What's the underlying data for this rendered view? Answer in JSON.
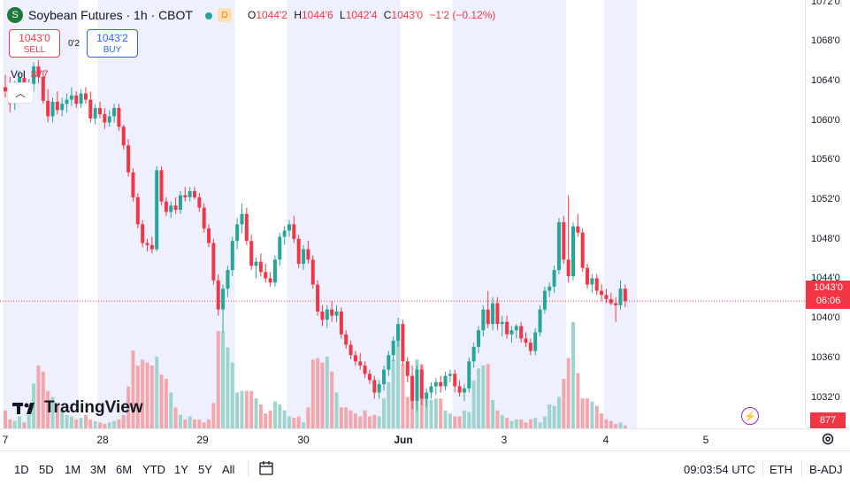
{
  "header": {
    "logo_glyph": "S",
    "symbol": "Soybean Futures · 1h · CBOT",
    "status_badge": "D",
    "ohlc": {
      "o_label": "O",
      "o": "1044'2",
      "h_label": "H",
      "h": "1044'6",
      "l_label": "L",
      "l": "1042'4",
      "c_label": "C",
      "c": "1043'0",
      "change": "−1'2 (−0.12%)"
    }
  },
  "trade": {
    "sell_price": "1043'0",
    "sell_label": "SELL",
    "buy_price": "1043'2",
    "buy_label": "BUY",
    "spread": "0'2"
  },
  "volume": {
    "label": "Vol",
    "value": "877"
  },
  "collapse_glyph": "︿",
  "logo_text": "TradingView",
  "price_axis": {
    "ticks": [
      "1072'0",
      "1068'0",
      "1064'0",
      "1060'0",
      "1056'0",
      "1052'0",
      "1048'0",
      "1044'0",
      "1040'0",
      "1036'0",
      "1032'0"
    ],
    "last_price": "1043'0",
    "countdown": "06:06",
    "volume_tag": "877"
  },
  "time_axis": [
    "7",
    "28",
    "29",
    "30",
    "Jun",
    "3",
    "4",
    "5"
  ],
  "bottom_bar": {
    "timeframes": [
      "1D",
      "5D",
      "1M",
      "3M",
      "6M",
      "YTD",
      "1Y",
      "5Y",
      "All"
    ],
    "clock": "09:03:54 UTC",
    "session": "ETH",
    "adjustment": "B-ADJ"
  },
  "colors": {
    "up": "#26a69a",
    "down": "#f23645",
    "session_bg": "#eef1fd",
    "vol_up": "#9fd4ce",
    "vol_down": "#f4a6ad"
  },
  "chart_data": {
    "type": "candlestick",
    "price_range": [
      1030.75,
      1072
    ],
    "last_price": 1043.0,
    "candles": [
      [
        1063.6,
        1064.8,
        1062.6,
        1063.2
      ],
      [
        1063.2,
        1064.6,
        1061.2,
        1062.0
      ],
      [
        1062.0,
        1064.2,
        1061.4,
        1063.8
      ],
      [
        1063.8,
        1065.2,
        1062.9,
        1064.5
      ],
      [
        1064.5,
        1065.1,
        1063.0,
        1063.4
      ],
      [
        1063.4,
        1064.4,
        1062.4,
        1063.9
      ],
      [
        1063.9,
        1066.0,
        1063.2,
        1065.6
      ],
      [
        1065.6,
        1066.2,
        1064.0,
        1064.6
      ],
      [
        1064.6,
        1065.2,
        1062.0,
        1062.3
      ],
      [
        1062.3,
        1063.4,
        1060.2,
        1060.8
      ],
      [
        1060.8,
        1062.6,
        1060.2,
        1062.2
      ],
      [
        1062.2,
        1063.2,
        1061.0,
        1061.4
      ],
      [
        1061.4,
        1062.6,
        1060.8,
        1062.0
      ],
      [
        1062.0,
        1063.0,
        1061.2,
        1062.4
      ],
      [
        1062.4,
        1063.6,
        1061.8,
        1062.8
      ],
      [
        1062.8,
        1063.2,
        1061.6,
        1062.0
      ],
      [
        1062.0,
        1063.4,
        1061.6,
        1063.0
      ],
      [
        1063.0,
        1063.6,
        1062.0,
        1062.4
      ],
      [
        1062.4,
        1063.2,
        1060.2,
        1060.6
      ],
      [
        1060.6,
        1062.0,
        1060.0,
        1061.6
      ],
      [
        1061.6,
        1062.2,
        1060.6,
        1061.0
      ],
      [
        1061.0,
        1061.6,
        1059.6,
        1060.2
      ],
      [
        1060.2,
        1061.4,
        1059.8,
        1060.8
      ],
      [
        1060.8,
        1062.0,
        1060.2,
        1061.6
      ],
      [
        1061.6,
        1062.0,
        1059.4,
        1059.8
      ],
      [
        1059.8,
        1060.0,
        1057.6,
        1058.0
      ],
      [
        1058.0,
        1058.6,
        1055.0,
        1055.4
      ],
      [
        1055.4,
        1055.8,
        1052.6,
        1053.0
      ],
      [
        1053.0,
        1053.4,
        1050.0,
        1050.4
      ],
      [
        1050.4,
        1050.8,
        1048.2,
        1048.6
      ],
      [
        1048.6,
        1049.0,
        1047.8,
        1048.4
      ],
      [
        1048.4,
        1049.2,
        1047.6,
        1048.0
      ],
      [
        1048.0,
        1056.0,
        1047.8,
        1055.6
      ],
      [
        1055.6,
        1056.0,
        1052.2,
        1052.6
      ],
      [
        1052.6,
        1053.0,
        1051.2,
        1051.6
      ],
      [
        1051.6,
        1052.6,
        1051.0,
        1052.2
      ],
      [
        1052.2,
        1053.0,
        1051.4,
        1051.8
      ],
      [
        1051.8,
        1053.6,
        1051.4,
        1053.2
      ],
      [
        1053.2,
        1054.0,
        1052.6,
        1053.0
      ],
      [
        1053.0,
        1054.0,
        1052.6,
        1053.6
      ],
      [
        1053.6,
        1054.0,
        1052.8,
        1053.0
      ],
      [
        1053.0,
        1053.4,
        1051.6,
        1052.0
      ],
      [
        1052.0,
        1052.4,
        1049.6,
        1050.0
      ],
      [
        1050.0,
        1050.4,
        1048.2,
        1048.6
      ],
      [
        1048.6,
        1049.0,
        1044.6,
        1045.0
      ],
      [
        1045.0,
        1045.6,
        1041.6,
        1042.2
      ],
      [
        1042.2,
        1044.6,
        1040.0,
        1044.2
      ],
      [
        1044.2,
        1046.4,
        1043.4,
        1046.0
      ],
      [
        1046.0,
        1049.2,
        1045.4,
        1048.8
      ],
      [
        1048.8,
        1051.0,
        1048.0,
        1050.4
      ],
      [
        1050.4,
        1052.4,
        1049.6,
        1051.4
      ],
      [
        1051.4,
        1052.0,
        1048.4,
        1048.8
      ],
      [
        1048.8,
        1049.4,
        1046.0,
        1046.4
      ],
      [
        1046.4,
        1047.2,
        1045.2,
        1046.8
      ],
      [
        1046.8,
        1047.6,
        1045.4,
        1045.8
      ],
      [
        1045.8,
        1046.6,
        1044.8,
        1045.2
      ],
      [
        1045.2,
        1045.8,
        1044.4,
        1044.8
      ],
      [
        1044.8,
        1047.4,
        1044.4,
        1047.0
      ],
      [
        1047.0,
        1049.6,
        1046.4,
        1049.2
      ],
      [
        1049.2,
        1050.2,
        1048.4,
        1049.8
      ],
      [
        1049.8,
        1050.8,
        1049.2,
        1050.4
      ],
      [
        1050.4,
        1051.2,
        1048.6,
        1049.0
      ],
      [
        1049.0,
        1049.4,
        1046.2,
        1046.6
      ],
      [
        1046.6,
        1048.4,
        1046.0,
        1048.0
      ],
      [
        1048.0,
        1048.8,
        1046.6,
        1047.0
      ],
      [
        1047.0,
        1047.4,
        1044.2,
        1044.6
      ],
      [
        1044.6,
        1045.0,
        1041.6,
        1042.0
      ],
      [
        1042.0,
        1042.6,
        1040.6,
        1041.2
      ],
      [
        1041.2,
        1042.6,
        1040.4,
        1042.2
      ],
      [
        1042.2,
        1043.0,
        1041.0,
        1041.6
      ],
      [
        1041.6,
        1042.6,
        1041.0,
        1042.0
      ],
      [
        1042.0,
        1042.4,
        1039.4,
        1039.8
      ],
      [
        1039.8,
        1040.2,
        1038.4,
        1038.8
      ],
      [
        1038.8,
        1039.2,
        1037.4,
        1037.8
      ],
      [
        1037.8,
        1038.2,
        1036.8,
        1037.2
      ],
      [
        1037.2,
        1038.0,
        1036.4,
        1036.8
      ],
      [
        1036.8,
        1037.2,
        1035.6,
        1036.0
      ],
      [
        1036.0,
        1036.4,
        1035.0,
        1035.4
      ],
      [
        1035.4,
        1035.8,
        1033.6,
        1034.2
      ],
      [
        1034.2,
        1035.4,
        1033.6,
        1035.0
      ],
      [
        1035.0,
        1036.8,
        1034.4,
        1036.4
      ],
      [
        1036.4,
        1038.2,
        1035.8,
        1037.8
      ],
      [
        1037.8,
        1039.6,
        1037.2,
        1039.2
      ],
      [
        1039.2,
        1041.4,
        1038.6,
        1040.8
      ],
      [
        1040.8,
        1041.2,
        1036.8,
        1037.2
      ],
      [
        1037.2,
        1037.6,
        1035.2,
        1035.8
      ],
      [
        1035.8,
        1036.8,
        1032.6,
        1033.4
      ],
      [
        1033.4,
        1036.8,
        1032.4,
        1036.4
      ],
      [
        1036.4,
        1036.8,
        1033.0,
        1033.6
      ],
      [
        1033.6,
        1034.6,
        1032.8,
        1034.2
      ],
      [
        1034.2,
        1035.2,
        1033.6,
        1034.8
      ],
      [
        1034.8,
        1035.6,
        1034.0,
        1035.2
      ],
      [
        1035.2,
        1035.8,
        1034.2,
        1034.8
      ],
      [
        1034.8,
        1036.2,
        1034.4,
        1035.8
      ],
      [
        1035.8,
        1036.4,
        1035.2,
        1036.0
      ],
      [
        1036.0,
        1036.4,
        1034.2,
        1034.8
      ],
      [
        1034.8,
        1035.4,
        1033.8,
        1034.2
      ],
      [
        1034.2,
        1035.0,
        1033.4,
        1034.6
      ],
      [
        1034.6,
        1037.6,
        1034.2,
        1037.2
      ],
      [
        1037.2,
        1039.0,
        1036.6,
        1038.6
      ],
      [
        1038.6,
        1040.6,
        1038.0,
        1040.2
      ],
      [
        1040.2,
        1042.6,
        1039.6,
        1042.2
      ],
      [
        1042.2,
        1044.0,
        1040.4,
        1040.8
      ],
      [
        1040.8,
        1043.4,
        1040.2,
        1042.8
      ],
      [
        1042.8,
        1043.4,
        1040.2,
        1040.8
      ],
      [
        1040.8,
        1041.6,
        1039.6,
        1041.0
      ],
      [
        1041.0,
        1041.6,
        1039.4,
        1039.8
      ],
      [
        1039.8,
        1040.6,
        1039.0,
        1040.2
      ],
      [
        1040.2,
        1040.8,
        1039.4,
        1040.6
      ],
      [
        1040.6,
        1041.0,
        1039.0,
        1039.4
      ],
      [
        1039.4,
        1040.0,
        1038.6,
        1039.0
      ],
      [
        1039.0,
        1039.4,
        1037.8,
        1038.2
      ],
      [
        1038.2,
        1040.4,
        1037.8,
        1040.0
      ],
      [
        1040.0,
        1042.6,
        1039.6,
        1042.2
      ],
      [
        1042.2,
        1044.4,
        1041.8,
        1044.0
      ],
      [
        1044.0,
        1044.8,
        1043.4,
        1044.4
      ],
      [
        1044.4,
        1046.4,
        1043.8,
        1046.0
      ],
      [
        1046.0,
        1051.0,
        1045.6,
        1050.6
      ],
      [
        1050.6,
        1051.2,
        1046.6,
        1047.0
      ],
      [
        1047.0,
        1053.2,
        1044.8,
        1045.4
      ],
      [
        1045.4,
        1050.6,
        1045.0,
        1050.2
      ],
      [
        1050.2,
        1051.4,
        1049.2,
        1049.6
      ],
      [
        1049.6,
        1050.0,
        1045.8,
        1046.2
      ],
      [
        1046.2,
        1046.6,
        1044.2,
        1044.6
      ],
      [
        1044.6,
        1045.6,
        1043.8,
        1045.2
      ],
      [
        1045.2,
        1045.6,
        1043.6,
        1044.0
      ],
      [
        1044.0,
        1044.6,
        1043.0,
        1043.6
      ],
      [
        1043.6,
        1044.2,
        1042.8,
        1043.2
      ],
      [
        1043.2,
        1043.8,
        1042.6,
        1042.8
      ],
      [
        1042.8,
        1043.4,
        1041.0,
        1042.6
      ],
      [
        1042.6,
        1045.0,
        1042.2,
        1044.2
      ],
      [
        1044.2,
        1044.6,
        1042.4,
        1043.0
      ]
    ],
    "volumes": [
      120,
      60,
      50,
      80,
      40,
      90,
      300,
      420,
      380,
      250,
      210,
      160,
      120,
      90,
      80,
      60,
      70,
      90,
      60,
      50,
      40,
      30,
      40,
      50,
      60,
      90,
      280,
      520,
      420,
      460,
      440,
      420,
      480,
      360,
      330,
      240,
      140,
      90,
      60,
      80,
      60,
      60,
      40,
      60,
      170,
      650,
      650,
      540,
      440,
      240,
      250,
      250,
      250,
      200,
      160,
      100,
      120,
      180,
      160,
      120,
      80,
      70,
      80,
      40,
      140,
      460,
      470,
      440,
      480,
      380,
      240,
      140,
      140,
      120,
      100,
      80,
      120,
      80,
      90,
      80,
      200,
      310,
      460,
      650,
      430,
      210,
      320,
      460,
      430,
      240,
      190,
      200,
      200,
      120,
      100,
      80,
      80,
      120,
      110,
      320,
      400,
      420,
      430,
      190,
      120,
      90,
      70,
      50,
      60,
      60,
      40,
      60,
      70,
      40,
      80,
      160,
      150,
      210,
      330,
      470,
      710,
      370,
      200,
      200,
      180,
      150,
      100,
      60,
      50,
      30,
      40,
      20
    ],
    "sessions": [
      [
        0,
        15
      ],
      [
        20,
        48
      ],
      [
        60,
        83
      ],
      [
        95,
        118
      ],
      [
        127,
        133
      ]
    ]
  }
}
